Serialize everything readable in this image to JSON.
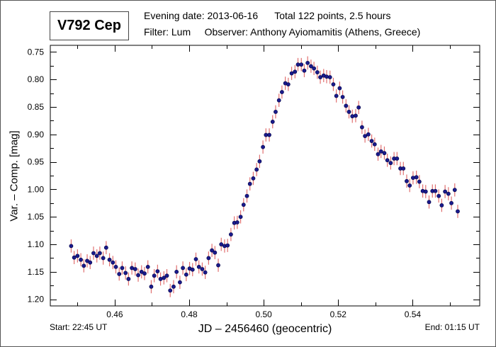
{
  "header": {
    "star_name": "V792 Cep",
    "line1_date": "Evening date: 2013-06-16",
    "line1_total": "Total 122 points, 2.5 hours",
    "line2_filter": "Filter: Lum",
    "line2_observer": "Observer: Anthony Ayiomamitis (Athens, Greece)"
  },
  "footer": {
    "start": "Start: 22:45 UT",
    "end": "End: 01:15 UT"
  },
  "colors": {
    "point": "#1a1a8c",
    "point_edge": "#000040",
    "errorbar": "#e07070",
    "axis": "#000000"
  },
  "chart_data": {
    "type": "scatter",
    "title": "V792 Cep",
    "xlabel": "JD – 2456460  (geocentric)",
    "ylabel": "Var. – Comp. [mag]",
    "xlim": [
      0.4427,
      0.558
    ],
    "ylim": [
      0.738,
      1.212
    ],
    "y_inverted": true,
    "grid": false,
    "x_ticks": [
      "0.46",
      "0.48",
      "0.50",
      "0.52",
      "0.54"
    ],
    "x_tick_values": [
      0.46,
      0.48,
      0.5,
      0.52,
      0.54
    ],
    "x_minor_step": 0.01,
    "y_ticks": [
      "0.75",
      "0.80",
      "0.85",
      "0.90",
      "0.95",
      "1.00",
      "1.05",
      "1.10",
      "1.15",
      "1.20"
    ],
    "y_tick_values": [
      0.75,
      0.8,
      0.85,
      0.9,
      0.95,
      1.0,
      1.05,
      1.1,
      1.15,
      1.2
    ],
    "y_minor_step": 0.025,
    "error": 0.012,
    "x": [
      0.4483,
      0.4491,
      0.45,
      0.4509,
      0.4517,
      0.4526,
      0.4534,
      0.4543,
      0.4552,
      0.456,
      0.4569,
      0.4577,
      0.4586,
      0.4595,
      0.4603,
      0.4612,
      0.462,
      0.4629,
      0.4637,
      0.4646,
      0.4655,
      0.4663,
      0.4672,
      0.468,
      0.4689,
      0.4698,
      0.4706,
      0.4715,
      0.4723,
      0.4732,
      0.474,
      0.4749,
      0.4758,
      0.4766,
      0.4775,
      0.4783,
      0.4792,
      0.4801,
      0.4809,
      0.4818,
      0.4826,
      0.4835,
      0.4843,
      0.4852,
      0.4861,
      0.4869,
      0.4878,
      0.4886,
      0.4895,
      0.4903,
      0.4912,
      0.4921,
      0.4929,
      0.4938,
      0.4946,
      0.4955,
      0.4963,
      0.4972,
      0.4981,
      0.4989,
      0.4998,
      0.5006,
      0.5015,
      0.5024,
      0.5032,
      0.5041,
      0.5049,
      0.5058,
      0.5066,
      0.5075,
      0.5084,
      0.5092,
      0.5101,
      0.5109,
      0.5118,
      0.5127,
      0.5135,
      0.5144,
      0.5152,
      0.5161,
      0.5169,
      0.5178,
      0.5187,
      0.5195,
      0.5204,
      0.5212,
      0.5221,
      0.5229,
      0.5238,
      0.5247,
      0.5255,
      0.5264,
      0.5272,
      0.5281,
      0.529,
      0.5298,
      0.5307,
      0.5315,
      0.5324,
      0.5332,
      0.5341,
      0.535,
      0.5358,
      0.5367,
      0.5375,
      0.5384,
      0.5392,
      0.5401,
      0.541,
      0.5418,
      0.5427,
      0.5435,
      0.5444,
      0.5453,
      0.5461,
      0.547,
      0.5478,
      0.5487,
      0.5496,
      0.5504,
      0.5513,
      0.5521
    ],
    "y": [
      1.103,
      1.124,
      1.121,
      1.128,
      1.139,
      1.13,
      1.133,
      1.116,
      1.121,
      1.116,
      1.125,
      1.106,
      1.128,
      1.133,
      1.141,
      1.154,
      1.143,
      1.152,
      1.163,
      1.143,
      1.145,
      1.156,
      1.15,
      1.153,
      1.141,
      1.177,
      1.157,
      1.149,
      1.163,
      1.161,
      1.157,
      1.184,
      1.177,
      1.15,
      1.169,
      1.143,
      1.155,
      1.144,
      1.146,
      1.127,
      1.141,
      1.145,
      1.151,
      1.125,
      1.111,
      1.115,
      1.138,
      1.1,
      1.103,
      1.102,
      1.082,
      1.061,
      1.06,
      1.05,
      1.028,
      1.012,
      0.99,
      0.98,
      0.964,
      0.949,
      0.923,
      0.901,
      0.901,
      0.877,
      0.859,
      0.838,
      0.823,
      0.807,
      0.809,
      0.789,
      0.786,
      0.773,
      0.773,
      0.784,
      0.77,
      0.776,
      0.78,
      0.787,
      0.796,
      0.793,
      0.795,
      0.796,
      0.809,
      0.83,
      0.816,
      0.832,
      0.848,
      0.859,
      0.867,
      0.866,
      0.851,
      0.887,
      0.903,
      0.9,
      0.912,
      0.918,
      0.936,
      0.931,
      0.934,
      0.947,
      0.952,
      0.944,
      0.944,
      0.962,
      0.962,
      0.985,
      0.993,
      0.979,
      0.978,
      0.986,
      1.003,
      1.004,
      1.023,
      1.003,
      1.003,
      1.012,
      1.029,
      1.004,
      1.008,
      1.025,
      1.001,
      1.04
    ]
  }
}
